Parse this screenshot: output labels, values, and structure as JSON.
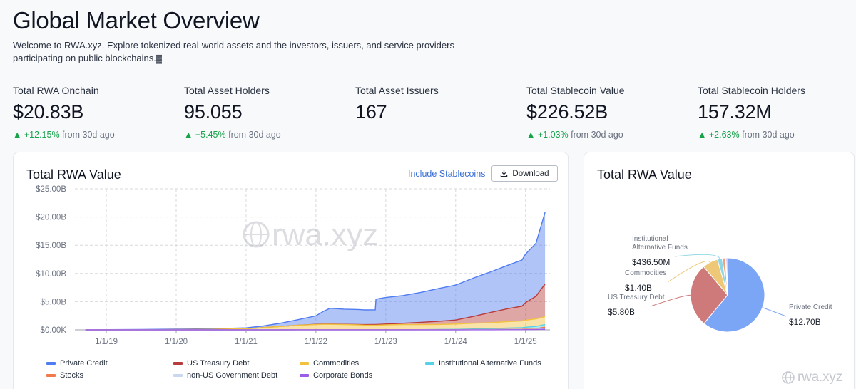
{
  "page": {
    "title": "Global Market Overview",
    "subtitle": "Welcome to RWA.xyz. Explore tokenized real-world assets and the investors, issuers, and service providers participating on public blockchains.",
    "subtitle_trailing_glyph": "▓"
  },
  "stats": [
    {
      "label": "Total RWA Onchain",
      "value": "$20.83B",
      "delta": "+12.15%",
      "suffix": "from 30d ago"
    },
    {
      "label": "Total Asset Holders",
      "value": "95.055",
      "delta": "+5.45%",
      "suffix": "from 30d ago"
    },
    {
      "label": "Total Asset Issuers",
      "value": "167",
      "delta": "",
      "suffix": ""
    },
    {
      "label": "Total Stablecoin Value",
      "value": "$226.52B",
      "delta": "+1.03%",
      "suffix": "from 30d ago"
    },
    {
      "label": "Total Stablecoin Holders",
      "value": "157.32M",
      "delta": "+2.63%",
      "suffix": "from 30d ago"
    }
  ],
  "line_card": {
    "title": "Total RWA Value",
    "include_stablecoins_label": "Include Stablecoins",
    "download_label": "Download",
    "watermark": "rwa.xyz"
  },
  "pie_card": {
    "title": "Total RWA Value",
    "watermark": "rwa.xyz"
  },
  "legend": [
    {
      "name": "Private Credit",
      "color": "#4f7cf0"
    },
    {
      "name": "US Treasury Debt",
      "color": "#b83a3a"
    },
    {
      "name": "Commodities",
      "color": "#f2c23f"
    },
    {
      "name": "Institutional Alternative Funds",
      "color": "#55d2e6"
    },
    {
      "name": "Stocks",
      "color": "#f07a4a"
    },
    {
      "name": "non-US Government Debt",
      "color": "#c9d8ee"
    },
    {
      "name": "Corporate Bonds",
      "color": "#9b5de5"
    }
  ],
  "colors": {
    "accent_link": "#3b6fd6",
    "positive": "#16a34a"
  },
  "chart_data": [
    {
      "type": "area",
      "title": "Total RWA Value",
      "xlabel": "",
      "ylabel": "",
      "x_ticks": [
        "1/1/19",
        "1/1/20",
        "1/1/21",
        "1/1/22",
        "1/1/23",
        "1/1/24",
        "1/1/25"
      ],
      "y_ticks": [
        "$0.00K",
        "$5.00B",
        "$10.00B",
        "$15.00B",
        "$20.00B",
        "$25.00B"
      ],
      "ylim": [
        0,
        25
      ],
      "y_unit": "B USD",
      "stacked": true,
      "grid": true,
      "legend_position": "bottom",
      "x": [
        2018.7,
        2019.0,
        2019.5,
        2020.0,
        2020.5,
        2021.0,
        2021.25,
        2021.5,
        2021.75,
        2022.0,
        2022.1,
        2022.2,
        2022.4,
        2022.6,
        2022.7,
        2022.85,
        2022.86,
        2023.0,
        2023.25,
        2023.5,
        2023.75,
        2024.0,
        2024.25,
        2024.5,
        2024.75,
        2024.95,
        2025.0,
        2025.15,
        2025.28
      ],
      "series": [
        {
          "name": "Private Credit",
          "values": [
            0.0,
            0.03,
            0.05,
            0.08,
            0.1,
            0.15,
            0.3,
            0.6,
            1.0,
            1.5,
            2.2,
            2.8,
            2.7,
            2.65,
            2.6,
            2.6,
            4.5,
            4.7,
            4.9,
            5.3,
            5.8,
            6.2,
            6.8,
            7.2,
            7.7,
            8.2,
            8.6,
            9.4,
            12.7
          ]
        },
        {
          "name": "US Treasury Debt",
          "values": [
            0.0,
            0.0,
            0.0,
            0.0,
            0.0,
            0.0,
            0.0,
            0.0,
            0.0,
            0.05,
            0.05,
            0.05,
            0.05,
            0.08,
            0.1,
            0.12,
            0.12,
            0.15,
            0.25,
            0.4,
            0.55,
            0.7,
            1.2,
            1.8,
            2.3,
            2.6,
            3.1,
            4.0,
            5.8
          ]
        },
        {
          "name": "Commodities",
          "values": [
            0.0,
            0.01,
            0.02,
            0.05,
            0.1,
            0.2,
            0.4,
            0.6,
            0.8,
            0.9,
            0.95,
            0.95,
            0.9,
            0.85,
            0.8,
            0.8,
            0.8,
            0.85,
            0.9,
            0.9,
            0.9,
            0.95,
            1.0,
            1.05,
            1.15,
            1.2,
            1.25,
            1.35,
            1.4
          ]
        },
        {
          "name": "Institutional Alternative Funds",
          "values": [
            0.0,
            0.0,
            0.0,
            0.0,
            0.0,
            0.0,
            0.0,
            0.0,
            0.0,
            0.0,
            0.0,
            0.0,
            0.0,
            0.0,
            0.0,
            0.0,
            0.0,
            0.0,
            0.0,
            0.0,
            0.02,
            0.05,
            0.1,
            0.15,
            0.2,
            0.25,
            0.3,
            0.38,
            0.44
          ]
        },
        {
          "name": "Stocks",
          "values": [
            0.0,
            0.0,
            0.0,
            0.0,
            0.0,
            0.0,
            0.0,
            0.0,
            0.01,
            0.02,
            0.02,
            0.02,
            0.02,
            0.02,
            0.02,
            0.02,
            0.02,
            0.02,
            0.02,
            0.02,
            0.02,
            0.02,
            0.03,
            0.04,
            0.05,
            0.06,
            0.08,
            0.12,
            0.28
          ]
        },
        {
          "name": "non-US Government Debt",
          "values": [
            0.0,
            0.0,
            0.0,
            0.0,
            0.0,
            0.0,
            0.0,
            0.0,
            0.01,
            0.01,
            0.01,
            0.01,
            0.01,
            0.01,
            0.01,
            0.01,
            0.01,
            0.01,
            0.01,
            0.02,
            0.02,
            0.02,
            0.03,
            0.03,
            0.04,
            0.05,
            0.05,
            0.06,
            0.08
          ]
        },
        {
          "name": "Corporate Bonds",
          "values": [
            0.0,
            0.0,
            0.0,
            0.0,
            0.0,
            0.0,
            0.0,
            0.0,
            0.0,
            0.0,
            0.0,
            0.0,
            0.0,
            0.0,
            0.0,
            0.0,
            0.0,
            0.0,
            0.0,
            0.0,
            0.0,
            0.0,
            0.01,
            0.01,
            0.02,
            0.03,
            0.04,
            0.05,
            0.13
          ]
        }
      ]
    },
    {
      "type": "pie",
      "title": "Total RWA Value",
      "slices": [
        {
          "name": "Private Credit",
          "value": 12.7,
          "label": "$12.70B",
          "color": "#7ba5f5"
        },
        {
          "name": "US Treasury Debt",
          "value": 5.8,
          "label": "$5.80B",
          "color": "#cf7a7a"
        },
        {
          "name": "Commodities",
          "value": 1.4,
          "label": "$1.40B",
          "color": "#eec877"
        },
        {
          "name": "Institutional Alternative Funds",
          "value": 0.4365,
          "label": "$436.50M",
          "color": "#8fd6e4"
        },
        {
          "name": "Stocks",
          "value": 0.28,
          "label": "",
          "color": "#f3a07a"
        },
        {
          "name": "non-US Government Debt",
          "value": 0.08,
          "label": "",
          "color": "#cfdbef"
        },
        {
          "name": "Corporate Bonds",
          "value": 0.13,
          "label": "",
          "color": "#b58be8"
        }
      ],
      "slice_label_names": {
        "Private Credit": "Private Credit",
        "US Treasury Debt": "US Treasury Debt",
        "Commodities": "Commodities",
        "Institutional Alternative Funds": [
          "Institutional",
          "Alternative Funds"
        ]
      }
    }
  ]
}
